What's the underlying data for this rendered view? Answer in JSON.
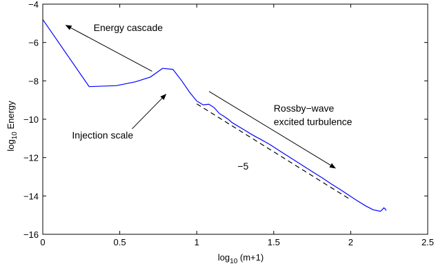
{
  "chart_data": {
    "type": "line",
    "xlabel": {
      "base": "log",
      "sub": "10",
      "rest": " (m+1)"
    },
    "ylabel": {
      "base": "log",
      "sub": "10",
      "rest": " Energy"
    },
    "xlim": [
      0,
      2.5
    ],
    "ylim": [
      -16,
      -4
    ],
    "xticks": [
      0,
      0.5,
      1,
      1.5,
      2,
      2.5
    ],
    "xtick_labels": [
      "0",
      "0.5",
      "1",
      "1.5",
      "2",
      "2.5"
    ],
    "yticks": [
      -16,
      -14,
      -12,
      -10,
      -8,
      -6,
      -4
    ],
    "ytick_labels": [
      "−16",
      "−14",
      "−12",
      "−10",
      "−8",
      "−6",
      "−4"
    ],
    "grid": false,
    "series": [
      {
        "color": "#0000ff",
        "style": "solid",
        "points": [
          [
            0.0,
            -4.8
          ],
          [
            0.301,
            -8.3
          ],
          [
            0.477,
            -8.25
          ],
          [
            0.602,
            -8.05
          ],
          [
            0.699,
            -7.8
          ],
          [
            0.778,
            -7.35
          ],
          [
            0.845,
            -7.4
          ],
          [
            0.903,
            -8.0
          ],
          [
            0.954,
            -8.6
          ],
          [
            1.0,
            -9.05
          ],
          [
            1.041,
            -9.25
          ],
          [
            1.079,
            -9.22
          ],
          [
            1.114,
            -9.4
          ],
          [
            1.146,
            -9.7
          ],
          [
            1.176,
            -9.85
          ],
          [
            1.204,
            -10.0
          ],
          [
            1.23,
            -10.18
          ],
          [
            1.255,
            -10.3
          ],
          [
            1.301,
            -10.52
          ],
          [
            1.362,
            -10.82
          ],
          [
            1.415,
            -11.05
          ],
          [
            1.477,
            -11.33
          ],
          [
            1.544,
            -11.68
          ],
          [
            1.613,
            -12.03
          ],
          [
            1.681,
            -12.38
          ],
          [
            1.748,
            -12.72
          ],
          [
            1.813,
            -13.05
          ],
          [
            1.875,
            -13.38
          ],
          [
            1.934,
            -13.68
          ],
          [
            1.991,
            -13.98
          ],
          [
            2.045,
            -14.26
          ],
          [
            2.097,
            -14.52
          ],
          [
            2.146,
            -14.72
          ],
          [
            2.193,
            -14.8
          ],
          [
            2.204,
            -14.72
          ],
          [
            2.215,
            -14.62
          ],
          [
            2.225,
            -14.68
          ],
          [
            2.23,
            -14.76
          ]
        ]
      },
      {
        "color": "#000000",
        "style": "dashed",
        "points": [
          [
            1.0,
            -9.2
          ],
          [
            2.0,
            -14.2
          ]
        ]
      }
    ],
    "annotations": [
      {
        "text": "Energy cascade",
        "x": 0.33,
        "y": -5.4
      },
      {
        "text": "Injection scale",
        "x": 0.19,
        "y": -11.0
      },
      {
        "text": "Rossby−wave",
        "x": 1.5,
        "y": -9.6
      },
      {
        "text": "excited turbulence",
        "x": 1.5,
        "y": -10.3
      },
      {
        "text": "−5",
        "x": 1.265,
        "y": -12.62
      }
    ],
    "arrows": [
      {
        "from": [
          0.71,
          -7.5
        ],
        "to": [
          0.15,
          -5.1
        ]
      },
      {
        "from": [
          0.58,
          -10.5
        ],
        "to": [
          0.8,
          -8.7
        ]
      },
      {
        "from": [
          1.08,
          -8.55
        ],
        "to": [
          1.9,
          -12.55
        ]
      }
    ]
  }
}
